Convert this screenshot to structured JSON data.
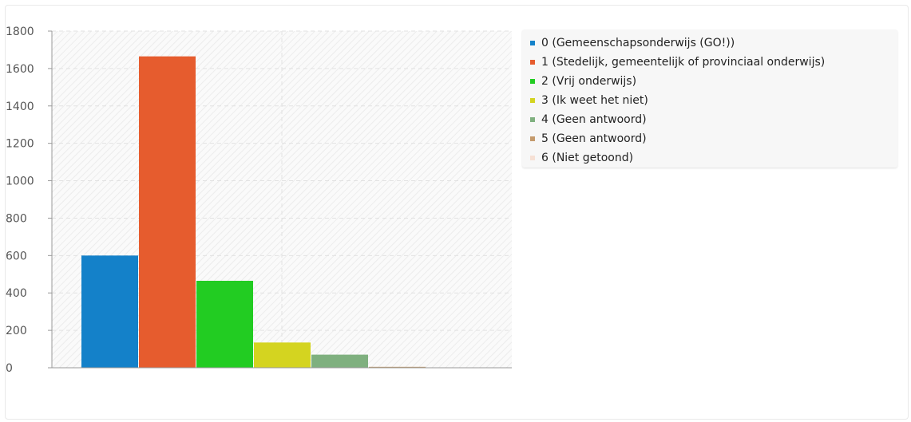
{
  "chart_data": {
    "type": "bar",
    "title": "",
    "xlabel": "",
    "ylabel": "",
    "ylim": [
      0,
      1800
    ],
    "yticks": [
      0,
      200,
      400,
      600,
      800,
      1000,
      1200,
      1400,
      1600,
      1800
    ],
    "grid": true,
    "legend_position": "right",
    "series": [
      {
        "name": "0 (Gemeenschapsonderwijs (GO!))",
        "value": 600,
        "color": "#1481c9"
      },
      {
        "name": "1 (Stedelijk, gemeentelijk of provinciaal onderwijs)",
        "value": 1665,
        "color": "#e65c2e"
      },
      {
        "name": "2 (Vrij onderwijs)",
        "value": 465,
        "color": "#22cc22"
      },
      {
        "name": "3 (Ik weet het niet)",
        "value": 135,
        "color": "#d4d420"
      },
      {
        "name": "4 (Geen antwoord)",
        "value": 70,
        "color": "#7fb07f"
      },
      {
        "name": "5 (Geen antwoord)",
        "value": 5,
        "color": "#c49a6c"
      },
      {
        "name": "6 (Niet getoond)",
        "value": 2,
        "color": "#f6e0d4"
      }
    ]
  }
}
